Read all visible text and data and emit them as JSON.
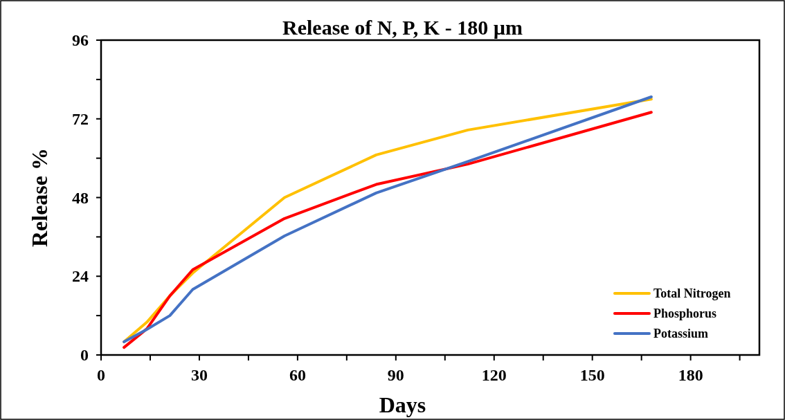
{
  "chart_data": {
    "type": "line",
    "title": "Release of N, P, K - 180 µm",
    "xlabel": "Days",
    "ylabel": "Release %",
    "x": [
      7,
      14,
      21,
      28,
      56,
      84,
      112,
      168
    ],
    "series": [
      {
        "name": "Total Nitrogen",
        "color": "#ffc000",
        "values": [
          4,
          10,
          18,
          25,
          48,
          61,
          68.6,
          78
        ]
      },
      {
        "name": "Phosphorus",
        "color": "#ff0000",
        "values": [
          2.3,
          8,
          18,
          26,
          41.6,
          52,
          58.2,
          74
        ]
      },
      {
        "name": "Potassium",
        "color": "#4472c4",
        "values": [
          4,
          7.8,
          12,
          20,
          36.3,
          49.4,
          59,
          78.7
        ]
      }
    ],
    "xlim": [
      0,
      201
    ],
    "xticks": [
      0,
      {
        "value": 15,
        "label": null
      },
      30,
      {
        "value": 45,
        "label": null
      },
      60,
      {
        "value": 75,
        "label": null
      },
      90,
      {
        "value": 105,
        "label": null
      },
      120,
      {
        "value": 135,
        "label": null
      },
      150,
      {
        "value": 165,
        "label": null
      },
      180,
      {
        "value": 195,
        "label": null
      }
    ],
    "ylim": [
      0,
      96
    ],
    "yticks": [
      0,
      {
        "value": 12,
        "label": null
      },
      24,
      {
        "value": 36,
        "label": null
      },
      48,
      {
        "value": 60,
        "label": null
      },
      72,
      {
        "value": 84,
        "label": null
      },
      96
    ],
    "grid": false,
    "legend": "bottom right",
    "marker": "none",
    "line_style": "solid"
  }
}
